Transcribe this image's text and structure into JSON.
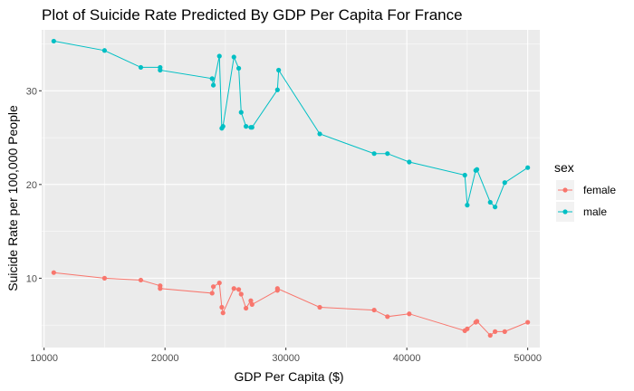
{
  "chart_data": {
    "type": "line",
    "title": "Plot of Suicide Rate Predicted By GDP Per Capita For France",
    "xlabel": "GDP Per Capita ($)",
    "ylabel": "Suicide Rate per 100,000 People",
    "xlim": [
      9800,
      51000
    ],
    "ylim": [
      2.6,
      36.5
    ],
    "x_ticks": [
      10000,
      20000,
      30000,
      40000,
      50000
    ],
    "x_tick_labels": [
      "10000",
      "20000",
      "30000",
      "40000",
      "50000"
    ],
    "y_ticks": [
      10,
      20,
      30
    ],
    "y_tick_labels": [
      "10",
      "20",
      "30"
    ],
    "grid": true,
    "legend_title": "sex",
    "legend_position": "right",
    "series": [
      {
        "name": "female",
        "color": "#F8766D",
        "points": [
          [
            10800,
            10.6
          ],
          [
            15000,
            10.0
          ],
          [
            18000,
            9.8
          ],
          [
            19600,
            9.2
          ],
          [
            19600,
            8.9
          ],
          [
            23900,
            8.4
          ],
          [
            24000,
            9.1
          ],
          [
            24500,
            9.5
          ],
          [
            24700,
            6.9
          ],
          [
            24800,
            6.3
          ],
          [
            25700,
            8.9
          ],
          [
            26100,
            8.8
          ],
          [
            26300,
            8.3
          ],
          [
            26700,
            6.8
          ],
          [
            27100,
            7.6
          ],
          [
            27200,
            7.2
          ],
          [
            29300,
            8.7
          ],
          [
            29300,
            8.9
          ],
          [
            32800,
            6.9
          ],
          [
            37300,
            6.6
          ],
          [
            38400,
            5.9
          ],
          [
            40200,
            6.2
          ],
          [
            44800,
            4.4
          ],
          [
            45000,
            4.6
          ],
          [
            45700,
            5.3
          ],
          [
            45800,
            5.4
          ],
          [
            46900,
            3.9
          ],
          [
            47300,
            4.3
          ],
          [
            48100,
            4.3
          ],
          [
            50000,
            5.3
          ]
        ]
      },
      {
        "name": "male",
        "color": "#00BFC4",
        "points": [
          [
            10800,
            35.3
          ],
          [
            15000,
            34.3
          ],
          [
            18000,
            32.5
          ],
          [
            19600,
            32.5
          ],
          [
            19600,
            32.2
          ],
          [
            23900,
            31.3
          ],
          [
            24000,
            30.6
          ],
          [
            24500,
            33.7
          ],
          [
            24700,
            26.0
          ],
          [
            24800,
            26.2
          ],
          [
            25700,
            33.6
          ],
          [
            26100,
            32.4
          ],
          [
            26300,
            27.7
          ],
          [
            26700,
            26.2
          ],
          [
            27100,
            26.1
          ],
          [
            27200,
            26.1
          ],
          [
            29300,
            30.1
          ],
          [
            29400,
            32.2
          ],
          [
            32800,
            25.4
          ],
          [
            37300,
            23.3
          ],
          [
            38400,
            23.3
          ],
          [
            40200,
            22.4
          ],
          [
            44800,
            21.0
          ],
          [
            45000,
            17.8
          ],
          [
            45700,
            21.5
          ],
          [
            45800,
            21.6
          ],
          [
            46900,
            18.1
          ],
          [
            47300,
            17.6
          ],
          [
            48100,
            20.2
          ],
          [
            50000,
            21.8
          ]
        ]
      }
    ]
  }
}
